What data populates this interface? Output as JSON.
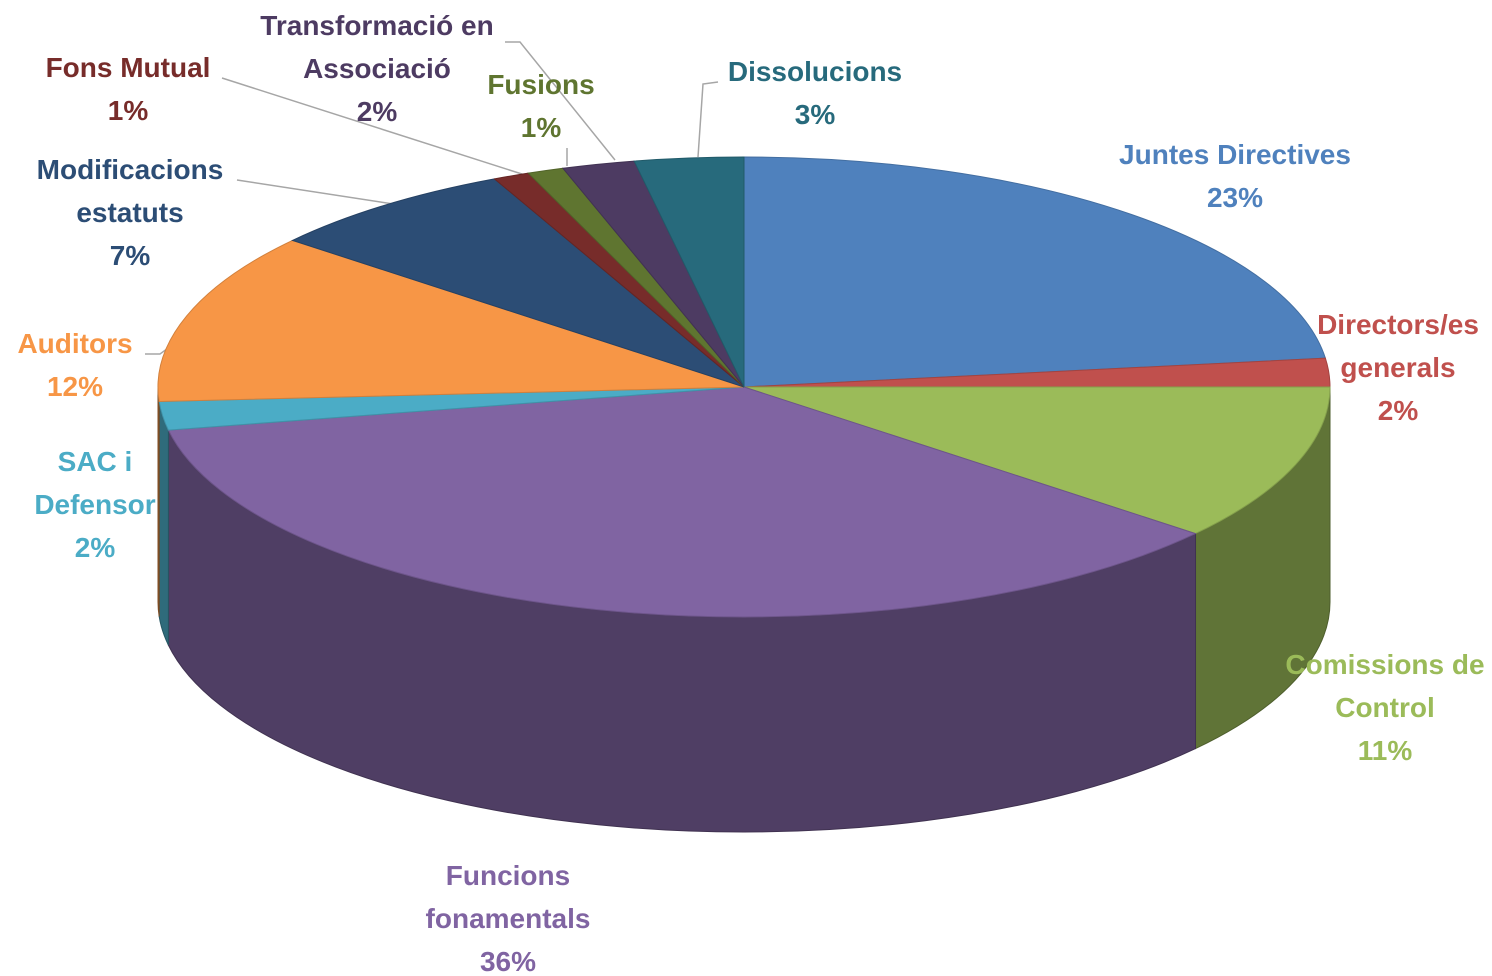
{
  "chart_data": {
    "type": "pie",
    "categories": [
      "Juntes Directives",
      "Directors/es generals",
      "Comissions de Control",
      "Funcions fonamentals",
      "SAC i Defensor",
      "Auditors",
      "Modificacions estatuts",
      "Fons Mutual",
      "Fusions",
      "Transformació en Associació",
      "Dissolucions"
    ],
    "values": [
      23,
      2,
      11,
      36,
      2,
      12,
      7,
      1,
      1,
      2,
      3
    ],
    "value_labels": [
      "23%",
      "2%",
      "11%",
      "36%",
      "2%",
      "12%",
      "7%",
      "1%",
      "1%",
      "2%",
      "3%"
    ],
    "colors": [
      "#4f81bd",
      "#c0504d",
      "#9bbb59",
      "#8064a2",
      "#4bacc6",
      "#f79646",
      "#2c4d75",
      "#772c2a",
      "#5f7530",
      "#4d3b62",
      "#276a7c"
    ]
  }
}
